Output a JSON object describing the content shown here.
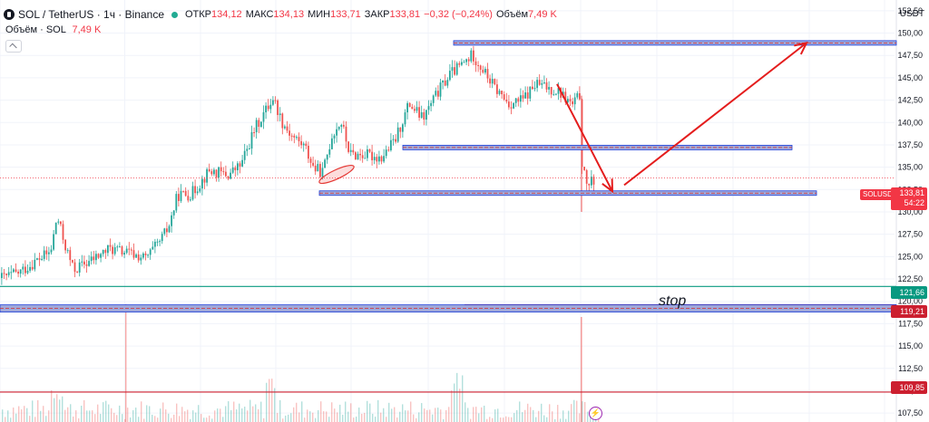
{
  "header": {
    "symbol": "SOL / TetherUS · 1ч · Binance",
    "status_color": "#22ab94",
    "open_label": "ОТКР",
    "open_value": "134,12",
    "high_label": "МАКС",
    "high_value": "134,13",
    "low_label": "МИН",
    "low_value": "133,71",
    "close_label": "ЗАКР",
    "close_value": "133,81",
    "change_value": "−0,32 (−0,24%)",
    "volume_label": "Объём",
    "volume_value": "7,49 K"
  },
  "volume_legend": {
    "label": "Объём · SOL",
    "value": "7,49 K"
  },
  "axis": {
    "currency": "USDT",
    "ticks": [
      "152,50",
      "150,00",
      "147,50",
      "145,00",
      "142,50",
      "140,00",
      "137,50",
      "135,00",
      "132,50",
      "130,00",
      "127,50",
      "125,00",
      "122,50",
      "120,00",
      "117,50",
      "115,00",
      "112,50",
      "110,00",
      "107,50"
    ]
  },
  "tags": {
    "price": "133,81",
    "countdown": "54:22",
    "symbol": "SOLUSDT",
    "level_green": "121,66",
    "level_stop": "119,21",
    "level_red": "109,85"
  },
  "annotations": {
    "stop": "stop"
  },
  "colors": {
    "up": "#26a69a",
    "down": "#ef5350",
    "zone_fill": "#9fa8da",
    "zone_border": "#1e3fd9",
    "arrow": "#e41d1d",
    "green_line": "#089981",
    "red_line": "#cc1f2f"
  },
  "chart_data": {
    "type": "candlestick",
    "title": "SOL / TetherUS · 1ч · Binance",
    "ylim": [
      106.5,
      153.7
    ],
    "y_axis_side": "right",
    "grid": true,
    "series": [
      {
        "name": "SOL / TetherUS",
        "close_path": [
          [
            0,
            122.6
          ],
          [
            20,
            123.2
          ],
          [
            40,
            124.6
          ],
          [
            55,
            125.5
          ],
          [
            62,
            129.5
          ],
          [
            70,
            126.5
          ],
          [
            80,
            123.5
          ],
          [
            100,
            124.6
          ],
          [
            120,
            125.9
          ],
          [
            140,
            125.4
          ],
          [
            160,
            124.8
          ],
          [
            175,
            126.6
          ],
          [
            185,
            128.3
          ],
          [
            195,
            131.9
          ],
          [
            210,
            132.0
          ],
          [
            230,
            134.6
          ],
          [
            250,
            134.1
          ],
          [
            265,
            135.3
          ],
          [
            280,
            139.3
          ],
          [
            295,
            141.9
          ],
          [
            300,
            142.8
          ],
          [
            310,
            140.1
          ],
          [
            320,
            138.6
          ],
          [
            335,
            137.3
          ],
          [
            345,
            134.9
          ],
          [
            355,
            134.4
          ],
          [
            365,
            138.6
          ],
          [
            375,
            140.1
          ],
          [
            385,
            136.4
          ],
          [
            400,
            136.4
          ],
          [
            420,
            136.1
          ],
          [
            435,
            138.1
          ],
          [
            450,
            142.1
          ],
          [
            465,
            140.4
          ],
          [
            480,
            143.1
          ],
          [
            495,
            145.4
          ],
          [
            510,
            146.6
          ],
          [
            520,
            147.6
          ],
          [
            530,
            146.1
          ],
          [
            545,
            143.8
          ],
          [
            560,
            142.1
          ],
          [
            575,
            142.5
          ],
          [
            590,
            144.3
          ],
          [
            605,
            143.8
          ],
          [
            615,
            143.5
          ],
          [
            630,
            141.9
          ],
          [
            638,
            143.0
          ],
          [
            641,
            134.5
          ],
          [
            648,
            132.9
          ],
          [
            656,
            133.8
          ]
        ]
      }
    ],
    "volume": {
      "name": "Объём · SOL",
      "last": "7,49 K"
    },
    "levels": [
      {
        "kind": "zone",
        "price": 148.9,
        "x_from": 500,
        "x_to": 988
      },
      {
        "kind": "zone",
        "price": 137.2,
        "x_from": 444,
        "x_to": 873
      },
      {
        "kind": "zone",
        "price": 132.1,
        "x_from": 352,
        "x_to": 900
      },
      {
        "kind": "zone",
        "price": 119.2,
        "x_from": 0,
        "x_to": 988,
        "label": "stop"
      },
      {
        "kind": "line",
        "price": 121.66
      },
      {
        "kind": "line",
        "price": 109.85
      }
    ],
    "arrows": [
      {
        "from": [
          614,
          144.3
        ],
        "to": [
          675,
          132.3
        ]
      },
      {
        "from": [
          688,
          133.0
        ],
        "to": [
          889,
          148.9
        ]
      }
    ],
    "last_price": 133.81
  }
}
